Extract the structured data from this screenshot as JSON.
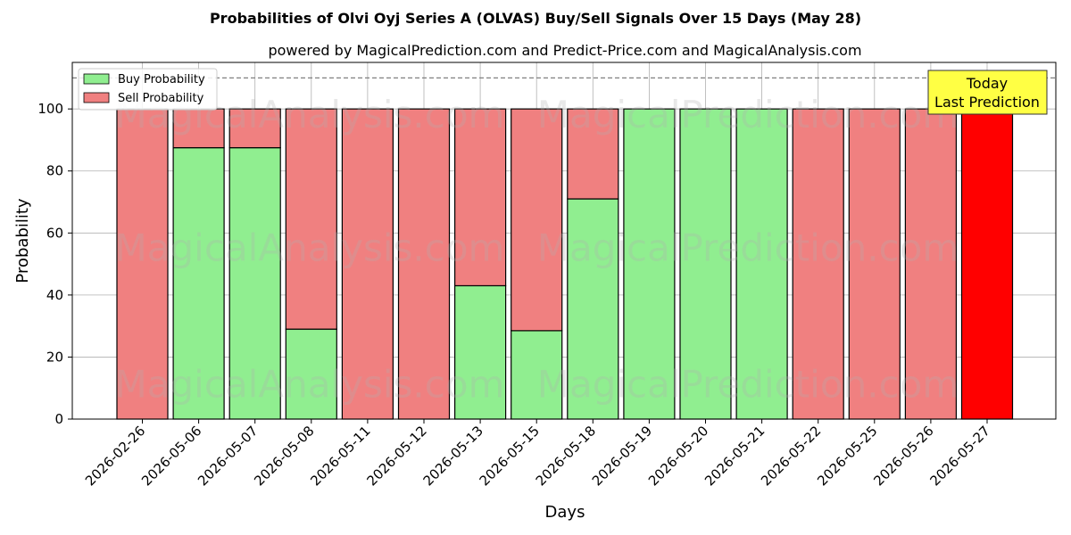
{
  "chart_data": {
    "type": "bar",
    "title": "Probabilities of Olvi Oyj Series A (OLVAS) Buy/Sell Signals Over 15 Days (May 28)",
    "subtitle": "powered by MagicalPrediction.com and Predict-Price.com and MagicalAnalysis.com",
    "xlabel": "Days",
    "ylabel": "Probability",
    "ylim": [
      0,
      115
    ],
    "yticks": [
      0,
      20,
      40,
      60,
      80,
      100
    ],
    "grid": true,
    "legend_position": "top-left",
    "stacked": true,
    "categories": [
      "2026-02-26",
      "2026-05-06",
      "2026-05-07",
      "2026-05-08",
      "2026-05-11",
      "2026-05-12",
      "2026-05-13",
      "2026-05-15",
      "2026-05-18",
      "2026-05-19",
      "2026-05-20",
      "2026-05-21",
      "2026-05-22",
      "2026-05-25",
      "2026-05-26",
      "2026-05-27"
    ],
    "series": [
      {
        "name": "Buy Probability",
        "color": "#90ee90",
        "values": [
          0,
          87.5,
          87.5,
          29,
          0,
          0,
          43,
          28.5,
          71,
          100,
          100,
          100,
          0,
          0,
          0,
          0
        ]
      },
      {
        "name": "Sell Probability",
        "color": "#f08080",
        "values": [
          100,
          12.5,
          12.5,
          71,
          100,
          100,
          57,
          71.5,
          29,
          0,
          0,
          0,
          100,
          100,
          100,
          100
        ]
      }
    ],
    "highlight": {
      "index": 15,
      "color": "#ff0000"
    },
    "reference_line": {
      "y": 110,
      "style": "dashed",
      "color": "#808080"
    },
    "annotation": {
      "lines": [
        "Today",
        "Last Prediction"
      ],
      "background": "#ffff44"
    },
    "watermarks": [
      "MagicalAnalysis.com",
      "MagicalPrediction.com"
    ]
  }
}
